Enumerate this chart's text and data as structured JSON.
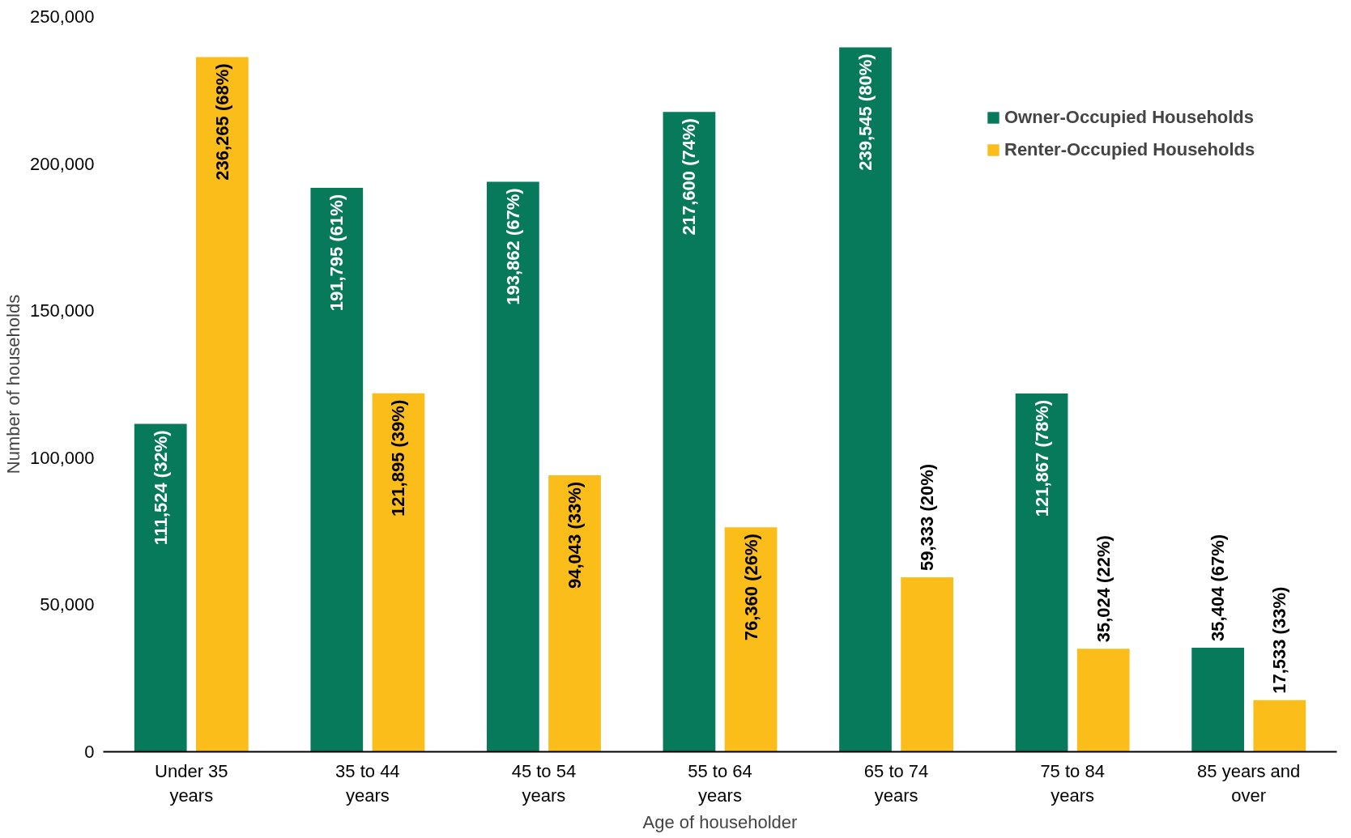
{
  "chart_data": {
    "type": "bar",
    "xlabel": "Age of householder",
    "ylabel": "Number of households",
    "categories": [
      "Under 35 years",
      "35 to 44 years",
      "45 to 54 years",
      "55 to 64 years",
      "65 to 74 years",
      "75 to 84 years",
      "85 years and over"
    ],
    "series": [
      {
        "name": "Owner-Occupied Households",
        "color": "#077a5c",
        "values": [
          111524,
          191795,
          193862,
          217600,
          239545,
          121867,
          35404
        ],
        "value_labels": [
          "111,524 (32%)",
          "191,795 (61%)",
          "193,862 (67%)",
          "217,600 (74%)",
          "239,545 (80%)",
          "121,867 (78%)",
          "35,404 (67%)"
        ]
      },
      {
        "name": "Renter-Occupied Households",
        "color": "#fbbd19",
        "values": [
          236265,
          121895,
          94043,
          76360,
          59333,
          35024,
          17533
        ],
        "value_labels": [
          "236,265 (68%)",
          "121,895 (39%)",
          "94,043 (33%)",
          "76,360 (26%)",
          "59,333 (20%)",
          "35,024 (22%)",
          "17,533 (33%)"
        ]
      }
    ],
    "ylim": [
      0,
      250000
    ],
    "yticks": [
      0,
      {
        "value": 50000,
        "label": "50,000"
      },
      {
        "value": 100000,
        "label": "100,000"
      },
      {
        "value": 150000,
        "label": "150,000"
      },
      {
        "value": 200000,
        "label": "200,000"
      },
      {
        "value": 250000,
        "label": "250,000"
      }
    ],
    "grid": false,
    "legend": "top right"
  }
}
